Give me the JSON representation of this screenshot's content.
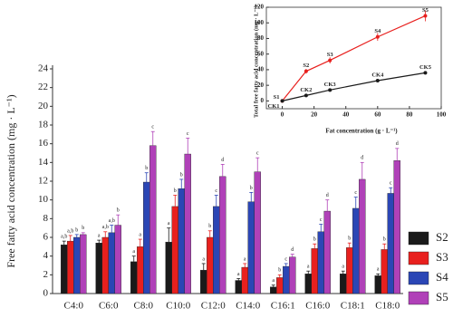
{
  "chart_data": [
    {
      "type": "bar",
      "y_label": "Free fatty acid concentration (mg · L⁻¹)",
      "categories": [
        "C4:0",
        "C6:0",
        "C8:0",
        "C10:0",
        "C12:0",
        "C14:0",
        "C16:1",
        "C16:0",
        "C18:1",
        "C18:0"
      ],
      "ylim": [
        0,
        24
      ],
      "yticks": [
        0,
        2,
        4,
        6,
        8,
        10,
        12,
        14,
        16,
        18,
        20,
        22,
        24
      ],
      "legend": "right",
      "series": [
        {
          "name": "S2",
          "color": "#1a1a1a",
          "values": [
            5.2,
            5.4,
            3.4,
            5.5,
            2.5,
            1.4,
            0.7,
            2.1,
            2.1,
            1.9
          ],
          "errors": [
            0.4,
            0.3,
            0.6,
            1.5,
            0.7,
            0.2,
            0.2,
            0.3,
            0.3,
            0.2
          ],
          "letters": [
            "a,b",
            "a",
            "a",
            "a",
            "a",
            "a",
            "a",
            "a",
            "a",
            "a"
          ]
        },
        {
          "name": "S3",
          "color": "#e8201e",
          "values": [
            5.6,
            6.0,
            5.0,
            9.3,
            6.0,
            2.8,
            1.7,
            4.8,
            4.9,
            4.7
          ],
          "errors": [
            0.6,
            0.6,
            0.8,
            1.2,
            0.7,
            0.4,
            0.3,
            0.5,
            0.5,
            0.6
          ],
          "letters": [
            "a,b",
            "a,b",
            "a",
            "b",
            "b",
            "a",
            "b",
            "b",
            "b",
            "b"
          ]
        },
        {
          "name": "S4",
          "color": "#2b46b5",
          "values": [
            6.0,
            6.5,
            11.9,
            11.2,
            9.3,
            9.8,
            2.9,
            6.6,
            9.1,
            10.7
          ],
          "errors": [
            0.3,
            0.8,
            1.0,
            1.0,
            1.2,
            1.0,
            0.3,
            0.8,
            1.2,
            0.6
          ],
          "letters": [
            "b",
            "a,b",
            "b",
            "b",
            "c",
            "b",
            "c",
            "c",
            "c",
            "c"
          ]
        },
        {
          "name": "S5",
          "color": "#b041b8",
          "values": [
            6.3,
            7.3,
            15.8,
            14.9,
            12.5,
            13.0,
            3.9,
            8.8,
            12.2,
            14.2
          ],
          "errors": [
            0.2,
            1.1,
            1.5,
            1.7,
            1.3,
            1.5,
            0.3,
            1.2,
            1.8,
            1.3
          ],
          "letters": [
            "b",
            "b",
            "c",
            "c",
            "d",
            "c",
            "d",
            "d",
            "d",
            "d"
          ]
        }
      ]
    },
    {
      "type": "line",
      "x_label": "Fat concentration (g · L⁻¹)",
      "y_label": "Total free fatty acid concentration (mg · L⁻¹)",
      "x": [
        0,
        15,
        30,
        60,
        90
      ],
      "xlim": [
        -10,
        100
      ],
      "xticks": [
        0,
        20,
        40,
        60,
        80,
        100
      ],
      "ylim": [
        -10,
        120
      ],
      "yticks": [
        0,
        20,
        40,
        60,
        80,
        100,
        120
      ],
      "series": [
        {
          "color": "#e8201e",
          "values": [
            0,
            38,
            52,
            82,
            109
          ],
          "errors": [
            0,
            3,
            4,
            5,
            7
          ],
          "point_labels": [
            "S1",
            "S2",
            "S3",
            "S4",
            "S5"
          ]
        },
        {
          "color": "#1a1a1a",
          "values": [
            0,
            7,
            14,
            26,
            36
          ],
          "errors": [
            0,
            1,
            1,
            1.5,
            2
          ],
          "point_labels": [
            "CK1",
            "CK2",
            "CK3",
            "CK4",
            "CK5"
          ]
        }
      ]
    }
  ]
}
